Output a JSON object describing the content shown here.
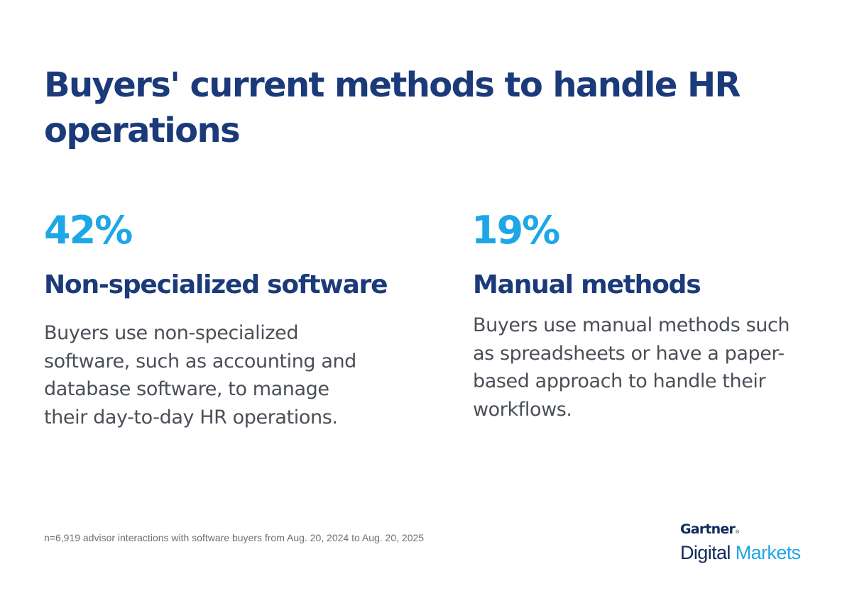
{
  "title": "Buyers' current methods to handle HR operations",
  "stats": [
    {
      "value": "42%",
      "heading": "Non-specialized software",
      "description": "Buyers use non-specialized software, such as accounting and database software, to manage their day-to-day HR operations."
    },
    {
      "value": "19%",
      "heading": "Manual methods",
      "description": "Buyers use manual methods such as spreadsheets or have a paper-based approach to handle their workflows."
    }
  ],
  "footnote": "n=6,919 advisor interactions with software buyers from Aug. 20, 2024 to Aug. 20, 2025",
  "logo": {
    "brand": "Gartner",
    "registered_mark": "®",
    "product_word_1": "Digital",
    "product_word_2": "Markets"
  },
  "colors": {
    "title_navy": "#1b3a7a",
    "stat_blue": "#1ea7e6",
    "body_gray": "#4a4f57",
    "footnote_gray": "#6b6f76"
  }
}
